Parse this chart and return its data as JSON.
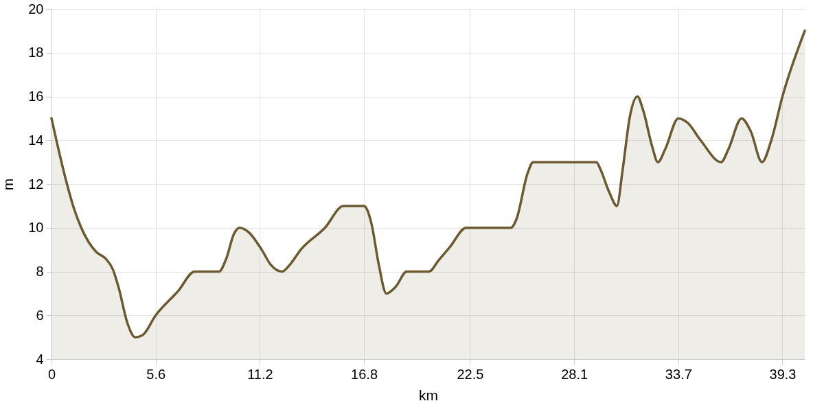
{
  "chart_data": {
    "type": "area",
    "xlabel": "km",
    "ylabel": "m",
    "x": [
      0,
      0.8,
      1.2,
      1.6,
      2.4,
      2.9,
      3.3,
      3.6,
      4.1,
      4.5,
      4.9,
      5.6,
      6.8,
      7.7,
      9.0,
      9.4,
      9.8,
      10.1,
      10.6,
      11.3,
      11.8,
      12.4,
      12.8,
      13.4,
      14.7,
      15.7,
      16.8,
      17.2,
      17.6,
      18.0,
      18.5,
      19.1,
      20.3,
      20.8,
      21.4,
      22.3,
      24.7,
      25.0,
      25.6,
      25.9,
      29.3,
      29.5,
      30.0,
      30.4,
      30.7,
      31.1,
      31.5,
      31.8,
      32.3,
      32.6,
      33.0,
      33.7,
      34.2,
      34.9,
      36.0,
      36.4,
      37.1,
      37.6,
      38.2,
      38.7,
      39.3,
      40.5
    ],
    "series": [
      {
        "color": "#6b5a2f",
        "values": [
          15,
          12.1,
          10.9,
          10,
          8.9,
          8.6,
          8.1,
          7.3,
          5.6,
          5,
          5.1,
          6,
          7.1,
          8,
          8,
          8.6,
          9.7,
          10,
          9.8,
          9,
          8.3,
          8,
          8.3,
          9,
          10,
          11,
          11,
          10.2,
          8.3,
          7,
          7.3,
          8,
          8,
          8.5,
          9.1,
          10,
          10,
          10.4,
          12.5,
          13,
          13,
          12.7,
          11.6,
          11,
          12.6,
          15.1,
          16,
          15.4,
          13.7,
          13,
          13.6,
          15,
          14.8,
          14,
          13,
          13.6,
          15,
          14.4,
          13,
          14,
          16,
          19
        ]
      }
    ],
    "xlim": [
      0,
      40.5
    ],
    "xticks": [
      0,
      5.6,
      11.2,
      16.8,
      22.5,
      28.1,
      33.7,
      39.3
    ],
    "ylim": [
      4,
      20
    ],
    "yticks": [
      4,
      6,
      8,
      10,
      12,
      14,
      16,
      18,
      20
    ],
    "grid": true
  }
}
